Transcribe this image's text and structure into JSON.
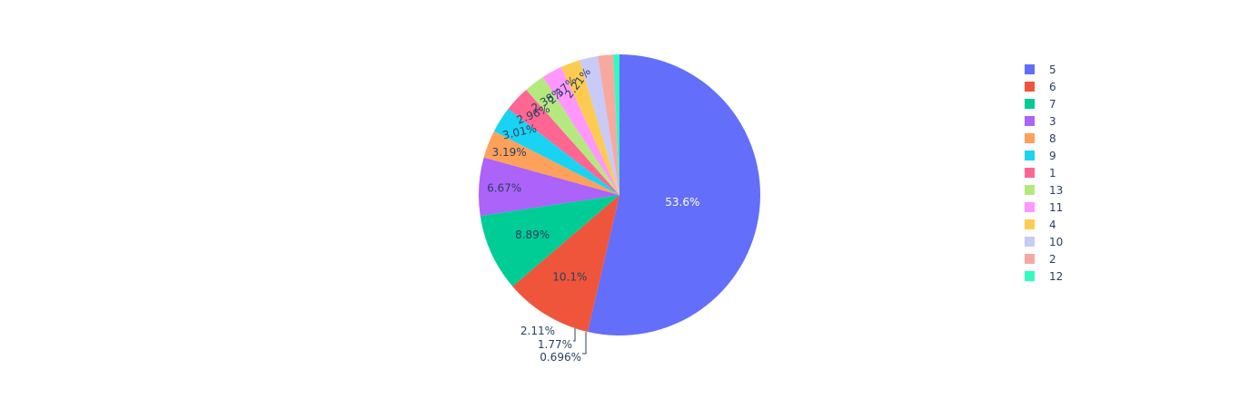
{
  "chart_data": {
    "type": "pie",
    "title": "",
    "direction": "clockwise",
    "start_angle_deg": 90,
    "legend_position": "right",
    "categories": [
      "5",
      "6",
      "7",
      "3",
      "8",
      "9",
      "1",
      "13",
      "11",
      "4",
      "10",
      "2",
      "12"
    ],
    "values": [
      53.6,
      10.1,
      8.89,
      6.67,
      3.19,
      3.01,
      2.96,
      2.38,
      2.37,
      2.21,
      2.11,
      1.77,
      0.696
    ],
    "labels": [
      "53.6%",
      "10.1%",
      "8.89%",
      "6.67%",
      "3.19%",
      "3.01%",
      "2.96%",
      "2.38%",
      "2.37%",
      "2.21%",
      "2.11%",
      "1.77%",
      "0.696%"
    ],
    "colors": [
      "#636efa",
      "#ef553b",
      "#00cc96",
      "#ab63fa",
      "#ffa15a",
      "#19d3f3",
      "#ff6692",
      "#b6e880",
      "#ff97ff",
      "#fecb52",
      "#c8caf8",
      "#f7a9a0",
      "#30fcc2"
    ]
  }
}
